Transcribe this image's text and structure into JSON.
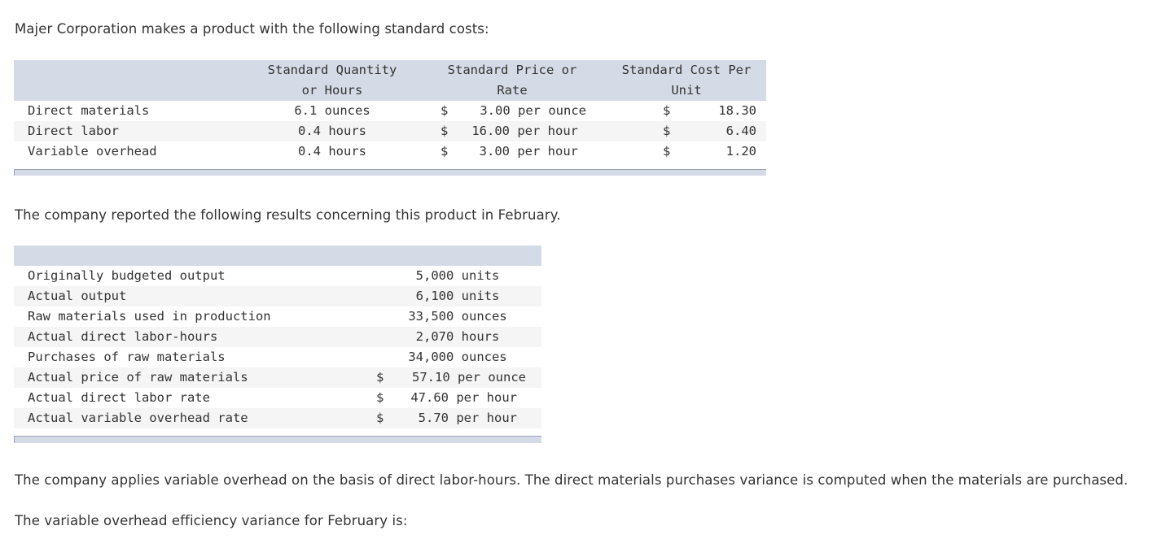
{
  "intro": "Majer Corporation makes a product with the following standard costs:",
  "standards": {
    "headers": {
      "qty_line1": "Standard Quantity",
      "qty_line2": "or Hours",
      "price_line1": "Standard Price or",
      "price_line2": "Rate",
      "cost_line1": "Standard Cost Per",
      "cost_line2": "Unit"
    },
    "rows": [
      {
        "label": "Direct materials",
        "qty": "6.1 ounces",
        "price_sym": "$",
        "price": "3.00 per ounce",
        "cost_sym": "$",
        "cost": "18.30"
      },
      {
        "label": "Direct labor",
        "qty": "0.4 hours",
        "price_sym": "$",
        "price": "16.00 per hour",
        "cost_sym": "$",
        "cost": "6.40"
      },
      {
        "label": "Variable overhead",
        "qty": "0.4 hours",
        "price_sym": "$",
        "price": "3.00 per hour",
        "cost_sym": "$",
        "cost": "1.20"
      }
    ]
  },
  "results_intro": "The company reported the following results concerning this product in February.",
  "results": {
    "rows": [
      {
        "label": "Originally budgeted output",
        "sym": "",
        "value": "5,000 units"
      },
      {
        "label": "Actual output",
        "sym": "",
        "value": "6,100 units"
      },
      {
        "label": "Raw materials used in production",
        "sym": "",
        "value": "33,500 ounces"
      },
      {
        "label": "Actual direct labor-hours",
        "sym": "",
        "value": "2,070 hours"
      },
      {
        "label": "Purchases of raw materials",
        "sym": "",
        "value": "34,000 ounces"
      },
      {
        "label": "Actual price of raw materials",
        "sym": "$",
        "value": "57.10 per ounce"
      },
      {
        "label": "Actual direct labor rate",
        "sym": "$",
        "value": "47.60 per hour"
      },
      {
        "label": "Actual variable overhead rate",
        "sym": "$",
        "value": "5.70 per hour"
      }
    ]
  },
  "note": "The company applies variable overhead on the basis of direct labor-hours. The direct materials purchases variance is computed when the materials are purchased.",
  "question": "The variable overhead efficiency variance for February is:"
}
